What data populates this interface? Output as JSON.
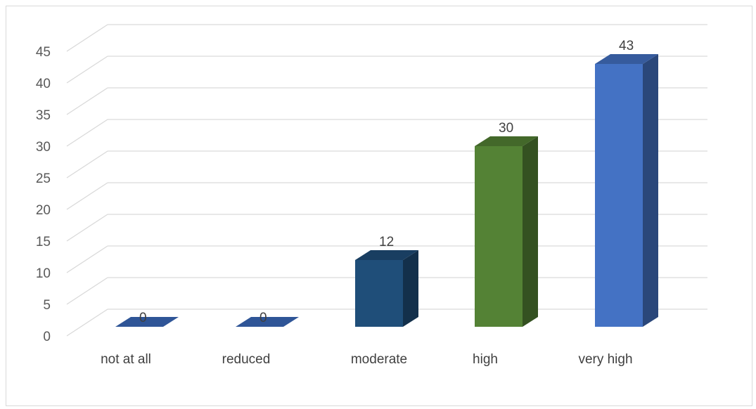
{
  "chart_data": {
    "type": "bar",
    "style": "3d-column",
    "categories": [
      "not at all",
      "reduced",
      "moderate",
      "high",
      "very high"
    ],
    "values": [
      0,
      0,
      12,
      30,
      43
    ],
    "data_labels": [
      "0",
      "0",
      "12",
      "30",
      "43"
    ],
    "bar_colors": [
      "#2f5597",
      "#2f5597",
      "#1f4e79",
      "#548235",
      "#4472c4"
    ],
    "ylim": [
      0,
      45
    ],
    "y_ticks": [
      0,
      5,
      10,
      15,
      20,
      25,
      30,
      35,
      40,
      45
    ],
    "y_tick_labels": [
      "0",
      "5",
      "10",
      "15",
      "20",
      "25",
      "30",
      "35",
      "40",
      "45"
    ],
    "grid": true,
    "legend": "none",
    "title": "",
    "xlabel": "",
    "ylabel": ""
  }
}
